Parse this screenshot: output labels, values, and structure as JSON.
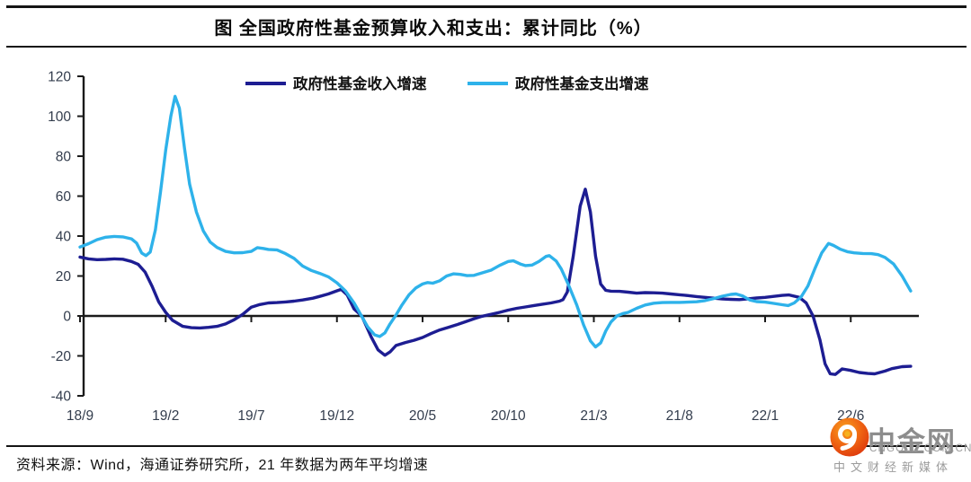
{
  "frame": {
    "title": "图 全国政府性基金预算收入和支出：累计同比（%）",
    "source_note": "资料来源：Wind，海通证券研究所，21 年数据为两年平均增速"
  },
  "watermark": {
    "brand": "中金网",
    "domain": "CNGOLD.COM.CN",
    "tagline": "中文财经新媒体",
    "logo_colors": {
      "outer": "#de3a0d",
      "mid": "#ef6412",
      "inner": "#f8a01e",
      "swirl": "#ffffff"
    }
  },
  "colors": {
    "axis": "#1a1a1a",
    "tick_label": "#333d4d",
    "revenue_line": "#1d1d92",
    "expenditure_line": "#2eb2ea",
    "legend_text": "#111111"
  },
  "chart_data": {
    "type": "line",
    "title": "图 全国政府性基金预算收入和支出：累计同比（%）",
    "xlabel": "",
    "ylabel": "",
    "ylim": [
      -40,
      120
    ],
    "yticks": [
      120,
      100,
      80,
      60,
      40,
      20,
      0,
      -20,
      -40
    ],
    "xtick_labels": [
      "18/9",
      "19/2",
      "19/7",
      "19/12",
      "20/5",
      "20/10",
      "21/3",
      "21/8",
      "22/1",
      "22/6"
    ],
    "months_per_xtick": 5,
    "x_unit": "month index from 2018/9",
    "grid": false,
    "legend_position": "top-center",
    "series": [
      {
        "name": "政府性基金收入增速",
        "color": "#1d1d92",
        "points": [
          [
            0,
            29.5
          ],
          [
            0.5,
            28.6
          ],
          [
            1,
            28.2
          ],
          [
            1.5,
            28.3
          ],
          [
            2,
            28.6
          ],
          [
            2.5,
            28.4
          ],
          [
            3,
            27.3
          ],
          [
            3.4,
            25.8
          ],
          [
            3.8,
            22
          ],
          [
            4.2,
            15
          ],
          [
            4.6,
            7
          ],
          [
            5,
            1.8
          ],
          [
            5.4,
            -2.2
          ],
          [
            6,
            -5.2
          ],
          [
            6.5,
            -5.9
          ],
          [
            7,
            -6
          ],
          [
            7.5,
            -5.7
          ],
          [
            8,
            -5.2
          ],
          [
            8.5,
            -4
          ],
          [
            9,
            -1.9
          ],
          [
            9.5,
            0.8
          ],
          [
            10,
            4.4
          ],
          [
            10.5,
            5.7
          ],
          [
            11,
            6.5
          ],
          [
            11.5,
            6.7
          ],
          [
            12,
            7
          ],
          [
            12.5,
            7.4
          ],
          [
            13,
            8
          ],
          [
            13.6,
            8.9
          ],
          [
            14,
            9.8
          ],
          [
            14.5,
            11
          ],
          [
            15,
            12.6
          ],
          [
            15.25,
            13.3
          ],
          [
            15.6,
            10.5
          ],
          [
            16,
            3.5
          ],
          [
            16.45,
            0
          ],
          [
            17,
            -10.5
          ],
          [
            17.4,
            -17
          ],
          [
            17.8,
            -19.7
          ],
          [
            18.1,
            -18
          ],
          [
            18.45,
            -14.8
          ],
          [
            19,
            -13.3
          ],
          [
            19.5,
            -12.2
          ],
          [
            20,
            -10.8
          ],
          [
            20.5,
            -8.8
          ],
          [
            21,
            -7
          ],
          [
            21.5,
            -5.7
          ],
          [
            22,
            -4.4
          ],
          [
            22.5,
            -2.9
          ],
          [
            23,
            -1.4
          ],
          [
            23.4,
            -0.3
          ],
          [
            24,
            0.8
          ],
          [
            24.5,
            1.8
          ],
          [
            25,
            2.9
          ],
          [
            25.5,
            3.8
          ],
          [
            26,
            4.5
          ],
          [
            26.5,
            5.2
          ],
          [
            27,
            5.9
          ],
          [
            27.5,
            6.5
          ],
          [
            28,
            7.4
          ],
          [
            28.2,
            8.2
          ],
          [
            28.45,
            12
          ],
          [
            28.8,
            30
          ],
          [
            29.2,
            55
          ],
          [
            29.5,
            63.5
          ],
          [
            29.8,
            52
          ],
          [
            30.1,
            30
          ],
          [
            30.4,
            16
          ],
          [
            30.7,
            12.8
          ],
          [
            31,
            12.4
          ],
          [
            31.5,
            12.3
          ],
          [
            32,
            11.9
          ],
          [
            32.5,
            11.4
          ],
          [
            33,
            11.7
          ],
          [
            33.5,
            11.6
          ],
          [
            34,
            11.4
          ],
          [
            34.5,
            11
          ],
          [
            35,
            10.6
          ],
          [
            35.5,
            10.2
          ],
          [
            36,
            9.7
          ],
          [
            36.5,
            9.3
          ],
          [
            37,
            8.9
          ],
          [
            37.5,
            8.5
          ],
          [
            38,
            8.3
          ],
          [
            38.5,
            8.2
          ],
          [
            39,
            8.6
          ],
          [
            39.5,
            9
          ],
          [
            40,
            9.3
          ],
          [
            40.5,
            9.8
          ],
          [
            41,
            10.3
          ],
          [
            41.4,
            10.5
          ],
          [
            42,
            9.3
          ],
          [
            42.4,
            6.5
          ],
          [
            42.8,
            0
          ],
          [
            43.2,
            -12
          ],
          [
            43.5,
            -24
          ],
          [
            43.8,
            -29
          ],
          [
            44.1,
            -29.3
          ],
          [
            44.5,
            -26.5
          ],
          [
            45,
            -27.3
          ],
          [
            45.5,
            -28.3
          ],
          [
            46,
            -28.8
          ],
          [
            46.4,
            -29
          ],
          [
            47,
            -27.6
          ],
          [
            47.4,
            -26.4
          ],
          [
            48,
            -25.4
          ],
          [
            48.5,
            -25.2
          ]
        ]
      },
      {
        "name": "政府性基金支出增速",
        "color": "#2eb2ea",
        "points": [
          [
            0,
            34.5
          ],
          [
            0.5,
            36.2
          ],
          [
            1,
            38.2
          ],
          [
            1.5,
            39.4
          ],
          [
            2,
            39.8
          ],
          [
            2.5,
            39.6
          ],
          [
            3,
            38.6
          ],
          [
            3.3,
            36.5
          ],
          [
            3.6,
            31.5
          ],
          [
            3.85,
            30.2
          ],
          [
            4.1,
            32
          ],
          [
            4.4,
            43
          ],
          [
            4.7,
            62
          ],
          [
            5,
            83
          ],
          [
            5.3,
            100
          ],
          [
            5.55,
            110
          ],
          [
            5.8,
            104
          ],
          [
            6.1,
            84
          ],
          [
            6.4,
            66
          ],
          [
            6.8,
            52
          ],
          [
            7.2,
            42.5
          ],
          [
            7.6,
            37
          ],
          [
            8,
            34.3
          ],
          [
            8.5,
            32.3
          ],
          [
            9,
            31.6
          ],
          [
            9.5,
            31.7
          ],
          [
            10,
            32.3
          ],
          [
            10.35,
            34.2
          ],
          [
            10.7,
            33.8
          ],
          [
            11,
            33.3
          ],
          [
            11.5,
            33.1
          ],
          [
            12,
            31.2
          ],
          [
            12.5,
            28.8
          ],
          [
            13,
            25
          ],
          [
            13.5,
            22.8
          ],
          [
            14,
            21.3
          ],
          [
            14.5,
            19.6
          ],
          [
            15,
            16.6
          ],
          [
            15.5,
            12.5
          ],
          [
            16,
            6.5
          ],
          [
            16.4,
            0.5
          ],
          [
            16.8,
            -5.5
          ],
          [
            17.2,
            -9.5
          ],
          [
            17.5,
            -10.3
          ],
          [
            17.8,
            -8.5
          ],
          [
            18.1,
            -4
          ],
          [
            18.45,
            0.5
          ],
          [
            18.8,
            5.5
          ],
          [
            19.2,
            10.5
          ],
          [
            19.6,
            14
          ],
          [
            20,
            16
          ],
          [
            20.3,
            16.7
          ],
          [
            20.6,
            16.4
          ],
          [
            21,
            17.6
          ],
          [
            21.4,
            20
          ],
          [
            21.8,
            21.1
          ],
          [
            22.2,
            20.8
          ],
          [
            22.6,
            20.2
          ],
          [
            23,
            20.3
          ],
          [
            23.5,
            21.6
          ],
          [
            24,
            22.9
          ],
          [
            24.5,
            25.3
          ],
          [
            25,
            27.3
          ],
          [
            25.3,
            27.6
          ],
          [
            25.7,
            26
          ],
          [
            26,
            25.2
          ],
          [
            26.4,
            25.5
          ],
          [
            26.8,
            27.3
          ],
          [
            27.2,
            29.8
          ],
          [
            27.4,
            30.2
          ],
          [
            27.8,
            27.5
          ],
          [
            28.1,
            23.5
          ],
          [
            28.5,
            16
          ],
          [
            29,
            5.5
          ],
          [
            29.4,
            -4.5
          ],
          [
            29.8,
            -12.5
          ],
          [
            30.1,
            -15.5
          ],
          [
            30.4,
            -13.5
          ],
          [
            30.7,
            -7.5
          ],
          [
            31,
            -3
          ],
          [
            31.35,
            0
          ],
          [
            31.7,
            1.2
          ],
          [
            32,
            1.8
          ],
          [
            32.5,
            3.8
          ],
          [
            33,
            5.5
          ],
          [
            33.5,
            6.4
          ],
          [
            34,
            6.7
          ],
          [
            34.5,
            6.8
          ],
          [
            35,
            6.8
          ],
          [
            35.5,
            6.9
          ],
          [
            36,
            7.1
          ],
          [
            36.5,
            7.7
          ],
          [
            37,
            8.7
          ],
          [
            37.5,
            9.9
          ],
          [
            38,
            10.8
          ],
          [
            38.3,
            11
          ],
          [
            38.7,
            10
          ],
          [
            39.1,
            8
          ],
          [
            39.5,
            7.2
          ],
          [
            40,
            6.9
          ],
          [
            40.5,
            6.3
          ],
          [
            41,
            5.6
          ],
          [
            41.35,
            5.2
          ],
          [
            41.7,
            6.5
          ],
          [
            42.1,
            9.5
          ],
          [
            42.5,
            15
          ],
          [
            42.9,
            23.5
          ],
          [
            43.3,
            31.5
          ],
          [
            43.7,
            36.3
          ],
          [
            44,
            35.3
          ],
          [
            44.4,
            33.4
          ],
          [
            44.8,
            32.2
          ],
          [
            45.2,
            31.6
          ],
          [
            45.7,
            31.3
          ],
          [
            46.2,
            31.2
          ],
          [
            46.6,
            30.7
          ],
          [
            47,
            29.3
          ],
          [
            47.5,
            26
          ],
          [
            48,
            20
          ],
          [
            48.5,
            12.5
          ]
        ]
      }
    ]
  }
}
